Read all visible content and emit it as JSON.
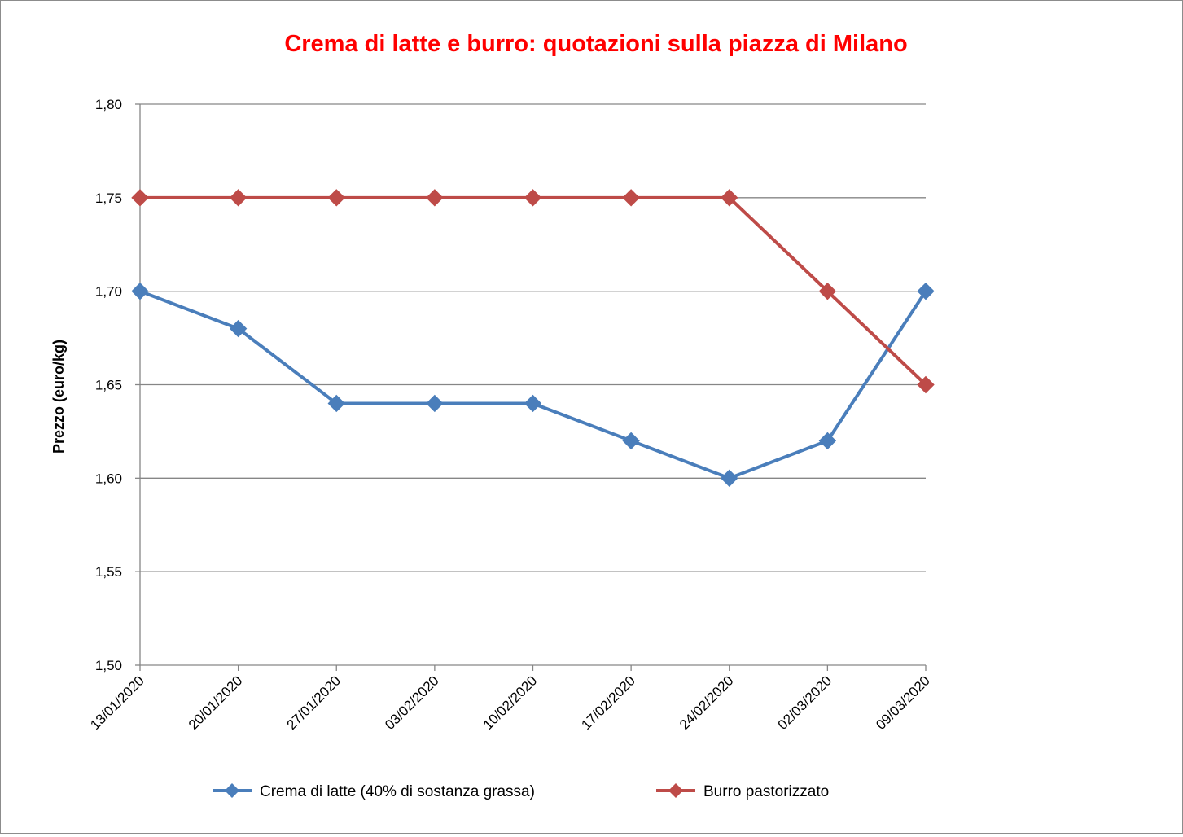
{
  "chart_data": {
    "type": "line",
    "title": "Crema di latte e burro: quotazioni sulla piazza di Milano",
    "xlabel": "",
    "ylabel": "Prezzo (euro/kg)",
    "ylim": [
      1.5,
      1.8
    ],
    "ytick_step": 0.05,
    "ytick_labels": [
      "1,50",
      "1,55",
      "1,60",
      "1,65",
      "1,70",
      "1,75",
      "1,80"
    ],
    "grid": true,
    "legend_position": "bottom",
    "title_color": "#ff0000",
    "categories": [
      "13/01/2020",
      "20/01/2020",
      "27/01/2020",
      "03/02/2020",
      "10/02/2020",
      "17/02/2020",
      "24/02/2020",
      "02/03/2020",
      "09/03/2020"
    ],
    "series": [
      {
        "name": "Crema di latte (40% di sostanza grassa)",
        "color": "#4a7ebb",
        "marker": "diamond",
        "values": [
          1.7,
          1.68,
          1.64,
          1.64,
          1.64,
          1.62,
          1.6,
          1.62,
          1.7
        ]
      },
      {
        "name": "Burro pastorizzato",
        "color": "#be4b48",
        "marker": "diamond",
        "values": [
          1.75,
          1.75,
          1.75,
          1.75,
          1.75,
          1.75,
          1.75,
          1.7,
          1.65
        ]
      }
    ]
  }
}
